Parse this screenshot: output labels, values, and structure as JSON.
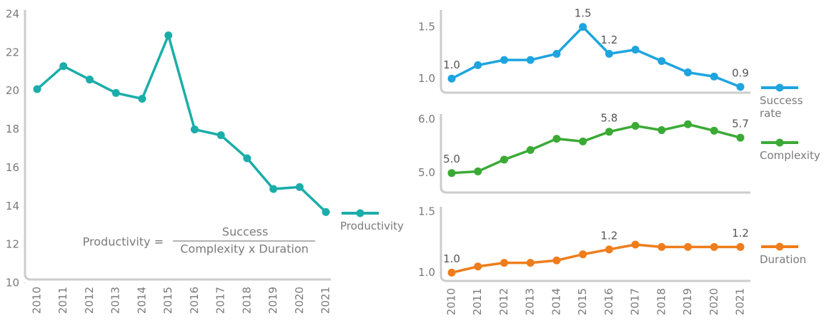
{
  "chart_data": [
    {
      "type": "line",
      "categories": [
        "2010",
        "2011",
        "2012",
        "2013",
        "2014",
        "2015",
        "2016",
        "2017",
        "2018",
        "2019",
        "2020",
        "2021"
      ],
      "series": [
        {
          "name": "Productivity",
          "color": "#1bada9",
          "values": [
            20.1,
            21.3,
            20.6,
            19.9,
            19.6,
            22.9,
            18.0,
            17.7,
            16.5,
            14.9,
            15.0,
            13.7
          ]
        }
      ],
      "ylim": [
        10,
        24
      ],
      "yticks": [
        10,
        12,
        14,
        16,
        18,
        20,
        22,
        24
      ],
      "annotations": [
        "Productivity =",
        "Success",
        "Complexity x Duration"
      ]
    },
    {
      "type": "line",
      "series": [
        {
          "name": "Success rate",
          "color": "#1ea4df",
          "values": [
            1.0,
            1.13,
            1.18,
            1.18,
            1.24,
            1.5,
            1.24,
            1.28,
            1.17,
            1.06,
            1.02,
            0.92
          ],
          "value_labels": [
            "1.0",
            null,
            null,
            null,
            null,
            "1.5",
            "1.2",
            null,
            null,
            null,
            null,
            "0.9"
          ]
        }
      ],
      "ylim": [
        0.85,
        1.65
      ],
      "yticks": [
        {
          "value": 1,
          "label": "1.0"
        },
        {
          "value": 1.5,
          "label": "1.5"
        }
      ]
    },
    {
      "type": "line",
      "series": [
        {
          "name": "Complexity",
          "color": "#3aaa35",
          "values": [
            5.0,
            5.03,
            5.25,
            5.43,
            5.64,
            5.59,
            5.77,
            5.88,
            5.8,
            5.91,
            5.79,
            5.66
          ],
          "value_labels": [
            "5.0",
            null,
            null,
            null,
            null,
            null,
            "5.8",
            null,
            null,
            null,
            null,
            "5.7"
          ]
        }
      ],
      "ylim": [
        4.65,
        6.1
      ],
      "yticks": [
        {
          "value": 5,
          "label": "5.0"
        },
        {
          "value": 6,
          "label": "6.0"
        }
      ]
    },
    {
      "type": "line",
      "categories": [
        "2010",
        "2011",
        "2012",
        "2013",
        "2014",
        "2015",
        "2016",
        "2017",
        "2018",
        "2019",
        "2020",
        "2021"
      ],
      "series": [
        {
          "name": "Duration",
          "color": "#ef7d1b",
          "values": [
            1.0,
            1.05,
            1.08,
            1.08,
            1.1,
            1.15,
            1.19,
            1.23,
            1.21,
            1.21,
            1.21,
            1.21
          ],
          "value_labels": [
            "1.0",
            null,
            null,
            null,
            null,
            null,
            "1.2",
            null,
            null,
            null,
            null,
            "1.2"
          ]
        }
      ],
      "ylim": [
        0.92,
        1.54
      ],
      "yticks": [
        {
          "value": 1,
          "label": "1.0"
        },
        {
          "value": 1.5,
          "label": "1.5"
        }
      ]
    }
  ]
}
